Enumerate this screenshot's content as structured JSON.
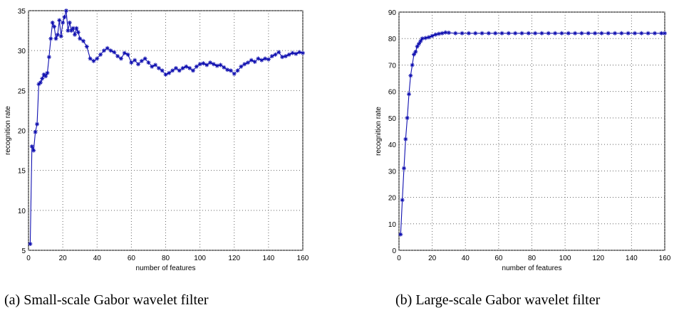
{
  "chart_data": [
    {
      "type": "line",
      "xlabel": "number of features",
      "ylabel": "recognition rate",
      "caption": "(a)  Small-scale Gabor wavelet filter",
      "xlim": [
        0,
        160
      ],
      "ylim": [
        5,
        35
      ],
      "xticks": [
        0,
        20,
        40,
        60,
        80,
        100,
        120,
        140,
        160
      ],
      "yticks": [
        5,
        10,
        15,
        20,
        25,
        30,
        35
      ],
      "grid": true,
      "color": "#1010b0",
      "x": [
        1,
        2,
        3,
        4,
        5,
        6,
        7,
        8,
        9,
        10,
        11,
        12,
        13,
        14,
        15,
        16,
        17,
        18,
        19,
        20,
        21,
        22,
        23,
        24,
        25,
        26,
        27,
        28,
        29,
        30,
        32,
        34,
        36,
        38,
        40,
        42,
        44,
        46,
        48,
        50,
        52,
        54,
        56,
        58,
        60,
        62,
        64,
        66,
        68,
        70,
        72,
        74,
        76,
        78,
        80,
        82,
        84,
        86,
        88,
        90,
        92,
        94,
        96,
        98,
        100,
        102,
        104,
        106,
        108,
        110,
        112,
        114,
        116,
        118,
        120,
        122,
        124,
        126,
        128,
        130,
        132,
        134,
        136,
        138,
        140,
        142,
        144,
        146,
        148,
        150,
        152,
        154,
        156,
        158,
        160
      ],
      "values": [
        5.8,
        18,
        17.5,
        19.8,
        20.8,
        25.8,
        26,
        26.5,
        27,
        26.8,
        27.2,
        29.2,
        31.5,
        33.5,
        33,
        31.5,
        32,
        33.8,
        31.8,
        33.5,
        34.2,
        35,
        32.5,
        33.5,
        32.5,
        32.8,
        32,
        32.8,
        32.3,
        31.5,
        31.2,
        30.5,
        29,
        28.7,
        29,
        29.5,
        30,
        30.3,
        30,
        29.8,
        29.3,
        29,
        29.7,
        29.5,
        28.5,
        28.8,
        28.3,
        28.7,
        29,
        28.5,
        28,
        28.2,
        27.8,
        27.5,
        27,
        27.2,
        27.5,
        27.8,
        27.5,
        27.8,
        28,
        27.8,
        27.5,
        28,
        28.3,
        28.4,
        28.2,
        28.5,
        28.3,
        28.1,
        28.2,
        27.9,
        27.6,
        27.5,
        27.1,
        27.5,
        28,
        28.3,
        28.5,
        28.8,
        28.6,
        29,
        28.8,
        29,
        28.9,
        29.3,
        29.5,
        29.8,
        29.2,
        29.3,
        29.5,
        29.7,
        29.6,
        29.8,
        29.7
      ]
    },
    {
      "type": "line",
      "xlabel": "number of features",
      "ylabel": "recognition rate",
      "caption": "(b) Large-scale Gabor wavelet filter",
      "xlim": [
        0,
        160
      ],
      "ylim": [
        0,
        90
      ],
      "xticks": [
        0,
        20,
        40,
        60,
        80,
        100,
        120,
        140,
        160
      ],
      "yticks": [
        0,
        10,
        20,
        30,
        40,
        50,
        60,
        70,
        80,
        90
      ],
      "grid": true,
      "color": "#1010b0",
      "x": [
        1,
        2,
        3,
        4,
        5,
        6,
        7,
        8,
        9,
        10,
        11,
        12,
        13,
        14,
        16,
        18,
        20,
        22,
        24,
        26,
        28,
        30,
        34,
        38,
        42,
        46,
        50,
        54,
        58,
        62,
        66,
        70,
        74,
        78,
        82,
        86,
        90,
        94,
        98,
        102,
        106,
        110,
        114,
        118,
        122,
        126,
        130,
        134,
        138,
        142,
        146,
        150,
        154,
        158,
        160
      ],
      "values": [
        6,
        19,
        31,
        42,
        50,
        59,
        66,
        70,
        74,
        75,
        77,
        78,
        79,
        80,
        80.2,
        80.5,
        81,
        81.5,
        81.8,
        82,
        82.3,
        82.2,
        82,
        82,
        82,
        82,
        82,
        82,
        82,
        82,
        82,
        82,
        82,
        82,
        82,
        82,
        82,
        82,
        82,
        82,
        82,
        82,
        82,
        82,
        82,
        82,
        82,
        82,
        82,
        82,
        82,
        82,
        82,
        82,
        82
      ]
    }
  ]
}
